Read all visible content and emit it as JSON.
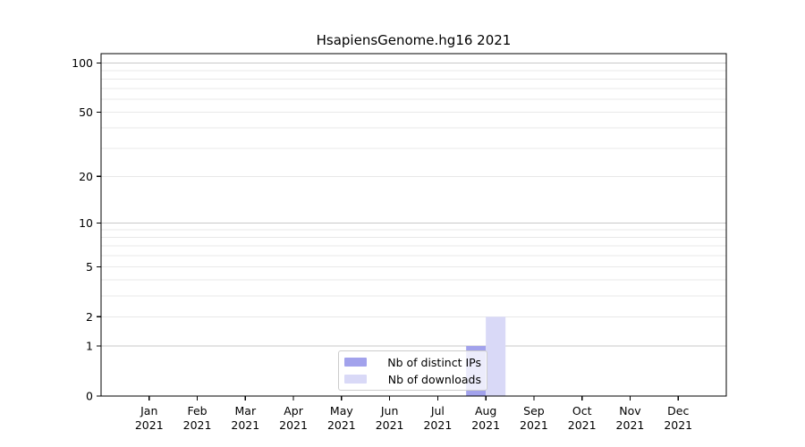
{
  "title": "HsapiensGenome.hg16 2021",
  "chart_data": {
    "type": "bar",
    "title": "HsapiensGenome.hg16 2021",
    "categories": [
      "Jan",
      "Feb",
      "Mar",
      "Apr",
      "May",
      "Jun",
      "Jul",
      "Aug",
      "Sep",
      "Oct",
      "Nov",
      "Dec"
    ],
    "x_tick_second_line": "2021",
    "series": [
      {
        "name": "Nb of distinct IPs",
        "color": "#a2a2ec",
        "values": [
          0,
          0,
          0,
          0,
          0,
          0,
          0,
          1,
          0,
          0,
          0,
          0
        ]
      },
      {
        "name": "Nb of downloads",
        "color": "#d9d9f7",
        "values": [
          0,
          0,
          0,
          0,
          0,
          0,
          0,
          2,
          0,
          0,
          0,
          0
        ]
      }
    ],
    "xlabel": "",
    "ylabel": "",
    "yscale": "log1p",
    "ylim": [
      0,
      114
    ],
    "y_tick_labels": [
      0,
      1,
      2,
      5,
      10,
      20,
      50,
      100
    ],
    "grid": "on",
    "grid_major_values": [
      1,
      10,
      100
    ],
    "grid_minor_values": [
      2,
      3,
      4,
      5,
      6,
      7,
      8,
      9,
      20,
      30,
      40,
      50,
      60,
      70,
      80,
      90
    ],
    "legend_position": "lower center inside plot",
    "colors": {
      "grid_major": "#c9c9c9",
      "grid_minor": "#e8e8e8",
      "axis": "#000000",
      "text": "#000000",
      "background": "#ffffff"
    }
  }
}
